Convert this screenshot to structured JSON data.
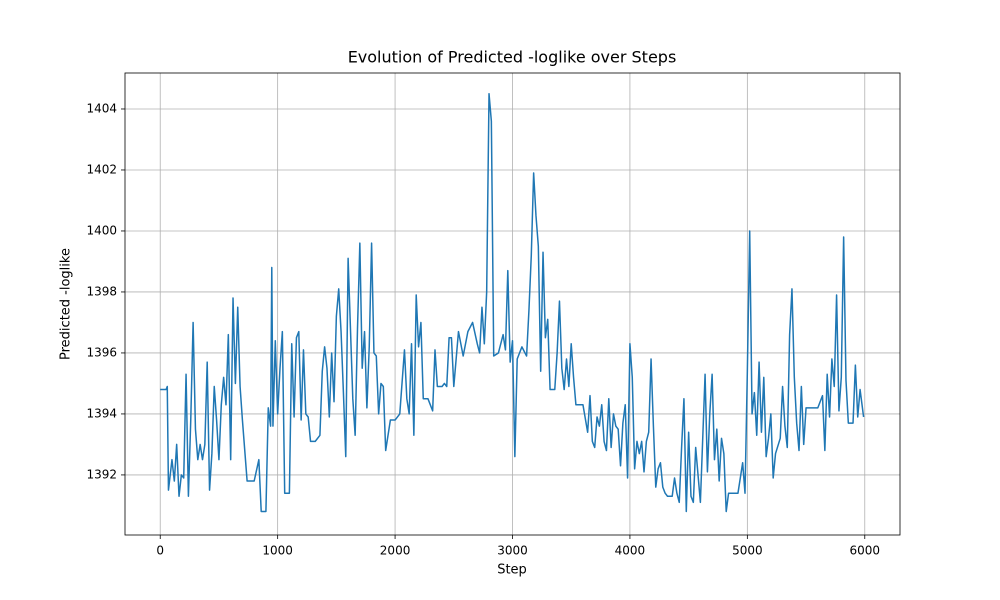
{
  "chart_data": {
    "type": "line",
    "title": "Evolution of Predicted -loglike over Steps",
    "x_label": "Step",
    "y_label": "Predicted -loglike",
    "color": "#1f77b4",
    "grid": true,
    "xlim": [
      -300,
      6300
    ],
    "xticks": [
      0,
      1000,
      2000,
      3000,
      4000,
      5000,
      6000
    ],
    "ylim": [
      1390.03,
      1405.18
    ],
    "yticks": [
      1392,
      1394,
      1396,
      1398,
      1400,
      1402,
      1404
    ],
    "x": [
      0,
      50,
      60,
      70,
      100,
      120,
      140,
      160,
      180,
      200,
      220,
      240,
      260,
      280,
      300,
      320,
      340,
      360,
      380,
      400,
      420,
      440,
      460,
      480,
      500,
      520,
      540,
      560,
      580,
      600,
      620,
      640,
      660,
      680,
      700,
      740,
      800,
      840,
      860,
      900,
      920,
      940,
      950,
      960,
      980,
      1000,
      1020,
      1040,
      1060,
      1100,
      1120,
      1140,
      1160,
      1180,
      1200,
      1220,
      1240,
      1260,
      1280,
      1320,
      1360,
      1380,
      1400,
      1420,
      1440,
      1460,
      1480,
      1500,
      1520,
      1540,
      1560,
      1580,
      1600,
      1640,
      1660,
      1680,
      1700,
      1720,
      1740,
      1760,
      1780,
      1800,
      1820,
      1840,
      1860,
      1880,
      1900,
      1920,
      1960,
      2000,
      2040,
      2080,
      2100,
      2120,
      2140,
      2160,
      2180,
      2200,
      2220,
      2240,
      2280,
      2320,
      2340,
      2360,
      2400,
      2420,
      2440,
      2460,
      2480,
      2500,
      2520,
      2540,
      2580,
      2620,
      2660,
      2700,
      2720,
      2740,
      2760,
      2780,
      2800,
      2820,
      2840,
      2880,
      2920,
      2940,
      2960,
      2980,
      3000,
      3020,
      3040,
      3080,
      3120,
      3140,
      3160,
      3180,
      3200,
      3220,
      3240,
      3260,
      3280,
      3300,
      3320,
      3360,
      3380,
      3400,
      3420,
      3440,
      3460,
      3480,
      3500,
      3520,
      3540,
      3600,
      3640,
      3660,
      3680,
      3700,
      3720,
      3740,
      3760,
      3780,
      3800,
      3820,
      3840,
      3860,
      3880,
      3900,
      3920,
      3940,
      3960,
      3980,
      4000,
      4020,
      4040,
      4060,
      4080,
      4100,
      4120,
      4140,
      4160,
      4180,
      4200,
      4220,
      4240,
      4260,
      4280,
      4300,
      4320,
      4360,
      4380,
      4400,
      4420,
      4440,
      4460,
      4480,
      4500,
      4520,
      4540,
      4560,
      4600,
      4640,
      4660,
      4680,
      4700,
      4720,
      4740,
      4760,
      4780,
      4800,
      4820,
      4840,
      4880,
      4920,
      4960,
      4980,
      5000,
      5020,
      5040,
      5060,
      5080,
      5100,
      5120,
      5140,
      5160,
      5180,
      5200,
      5220,
      5240,
      5280,
      5300,
      5320,
      5340,
      5360,
      5380,
      5400,
      5420,
      5440,
      5460,
      5480,
      5500,
      5560,
      5600,
      5640,
      5660,
      5680,
      5700,
      5720,
      5740,
      5760,
      5780,
      5800,
      5820,
      5840,
      5860,
      5900,
      5920,
      5940,
      5960,
      5990
    ],
    "values": [
      1394.8,
      1394.8,
      1394.9,
      1391.5,
      1392.5,
      1391.8,
      1393,
      1391.3,
      1392,
      1391.9,
      1395.3,
      1391.3,
      1393.8,
      1397,
      1393.5,
      1392.5,
      1393,
      1392.5,
      1393,
      1395.7,
      1391.5,
      1392.7,
      1394.9,
      1393.8,
      1392.5,
      1394.3,
      1395.2,
      1394.3,
      1396.6,
      1392.5,
      1397.8,
      1395,
      1397.5,
      1394.9,
      1393.8,
      1391.8,
      1391.8,
      1392.5,
      1390.8,
      1390.8,
      1394.2,
      1393.6,
      1398.8,
      1393.6,
      1396.4,
      1394,
      1395.5,
      1396.7,
      1391.4,
      1391.4,
      1396.3,
      1393.9,
      1396.5,
      1396.7,
      1393.8,
      1396.1,
      1394,
      1393.9,
      1393.1,
      1393.1,
      1393.3,
      1395.4,
      1396.2,
      1395.5,
      1393.9,
      1396,
      1394.4,
      1397.2,
      1398.1,
      1396.7,
      1394.7,
      1392.6,
      1399.1,
      1394.5,
      1393.3,
      1396.8,
      1399.6,
      1395.5,
      1396.7,
      1394.2,
      1396.2,
      1399.6,
      1396,
      1395.9,
      1394,
      1395,
      1394.9,
      1392.8,
      1393.8,
      1393.8,
      1394,
      1396.1,
      1394.5,
      1394,
      1396.3,
      1393.3,
      1397.9,
      1396.2,
      1397,
      1394.5,
      1394.5,
      1394.1,
      1396.1,
      1394.9,
      1394.9,
      1395,
      1394.9,
      1396.5,
      1396.5,
      1394.9,
      1395.8,
      1396.7,
      1395.9,
      1396.7,
      1397,
      1396.3,
      1396,
      1397.5,
      1396.3,
      1398,
      1404.5,
      1403.6,
      1395.9,
      1396,
      1396.6,
      1396.1,
      1398.7,
      1395.7,
      1396.4,
      1392.6,
      1395.8,
      1396.2,
      1395.9,
      1397.4,
      1399.2,
      1401.9,
      1400.5,
      1399.5,
      1395.4,
      1399.3,
      1396.5,
      1397.1,
      1394.8,
      1394.8,
      1396,
      1397.7,
      1395.5,
      1394.8,
      1395.8,
      1394.9,
      1396.3,
      1395.2,
      1394.3,
      1394.3,
      1393.4,
      1394.6,
      1393.1,
      1392.9,
      1393.9,
      1393.6,
      1394.3,
      1393.1,
      1392.8,
      1394.5,
      1392.9,
      1394,
      1393.6,
      1393.5,
      1392.3,
      1393.7,
      1394.3,
      1391.9,
      1396.3,
      1395.2,
      1392.2,
      1393.1,
      1392.7,
      1393.1,
      1392.1,
      1393.1,
      1393.4,
      1395.8,
      1393.6,
      1391.6,
      1392.2,
      1392.4,
      1391.6,
      1391.4,
      1391.3,
      1391.3,
      1391.9,
      1391.4,
      1391.1,
      1392.9,
      1394.5,
      1390.8,
      1393.4,
      1391.3,
      1391.1,
      1392.9,
      1391.1,
      1395.3,
      1392.1,
      1394,
      1395.3,
      1392.5,
      1393.5,
      1391.8,
      1393.2,
      1392.7,
      1390.8,
      1391.4,
      1391.4,
      1391.4,
      1392.4,
      1391.4,
      1395.4,
      1400,
      1394,
      1394.7,
      1393.3,
      1395.7,
      1393.4,
      1395.2,
      1392.6,
      1393.2,
      1394,
      1391.9,
      1392.7,
      1393.2,
      1394.9,
      1393.6,
      1392.9,
      1396.6,
      1398.1,
      1395.2,
      1393.7,
      1392.8,
      1394.9,
      1393,
      1394.2,
      1394.2,
      1394.2,
      1394.6,
      1392.8,
      1395.3,
      1393.9,
      1395.8,
      1394.9,
      1397.9,
      1394.1,
      1395.2,
      1399.8,
      1395.1,
      1393.7,
      1393.7,
      1395.6,
      1393.9,
      1394.8,
      1393.9
    ]
  }
}
